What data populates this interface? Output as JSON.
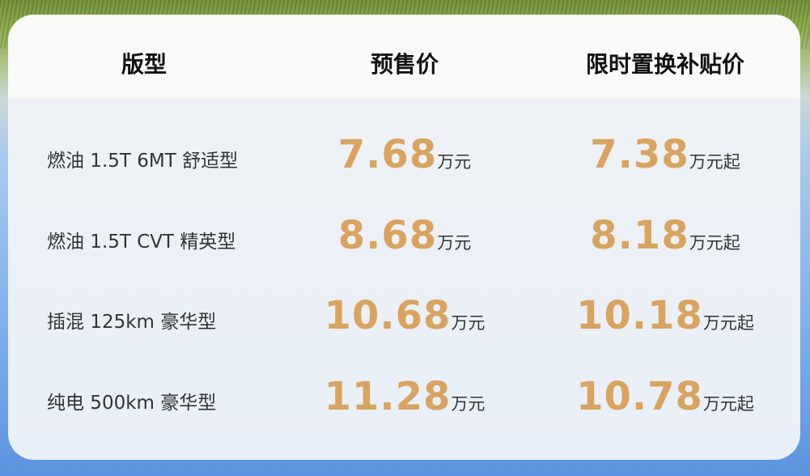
{
  "headers": [
    "版型",
    "预售价",
    "限时置换补贴价"
  ],
  "rows": [
    {
      "name": "燃油 1.5T 6MT 舒适型",
      "presale": "7.68",
      "presale_unit": "万元",
      "subsidy": "7.38",
      "subsidy_unit": "万元起"
    },
    {
      "name": "燃油 1.5T CVT 精英型",
      "presale": "8.68",
      "presale_unit": "万元",
      "subsidy": "8.18",
      "subsidy_unit": "万元起"
    },
    {
      "name": "插混 125km 豪华型",
      "presale": "10.68",
      "presale_unit": "万元",
      "subsidy": "10.18",
      "subsidy_unit": "万元起"
    },
    {
      "name": "纯电 500km 豪华型",
      "presale": "11.28",
      "presale_unit": "万元",
      "subsidy": "10.78",
      "subsidy_unit": "万元起"
    }
  ],
  "colors": {
    "price": "#d9a460",
    "header_text": "#111111"
  }
}
